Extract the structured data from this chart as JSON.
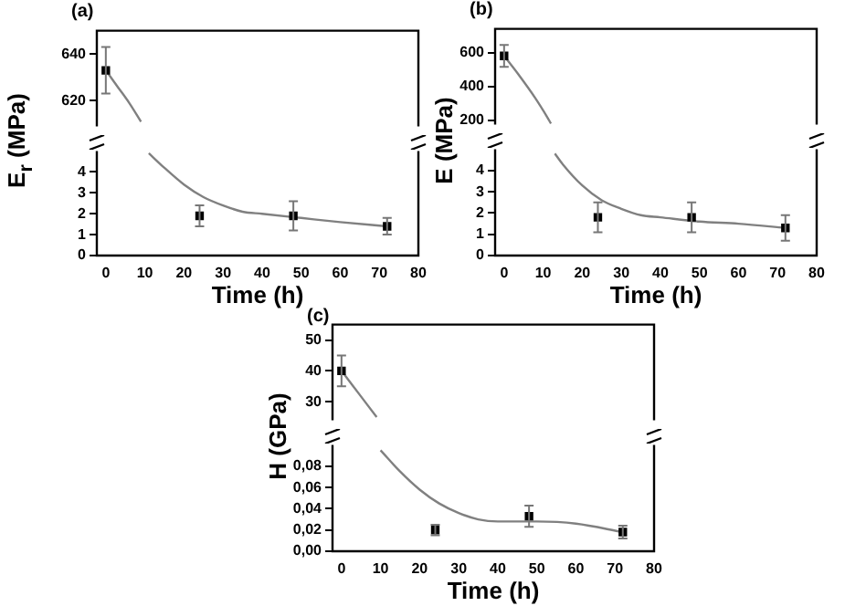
{
  "chart_data": [
    {
      "type": "scatter",
      "title": "(a)",
      "xlim": [
        -2.3,
        80
      ],
      "ylim": [
        609,
        650
      ],
      "yticks": [
        620,
        640
      ],
      "tick_labels": "y",
      "marker": "square",
      "series": [
        {
          "type": "scatter",
          "color": "#000000",
          "x": [
            0
          ],
          "values": [
            633
          ],
          "errors": [
            10
          ]
        },
        {
          "type": "line",
          "color": "#808080",
          "marker": "none",
          "x": [
            0,
            3,
            6,
            9
          ],
          "values": [
            633,
            626,
            619,
            611
          ]
        }
      ]
    },
    {
      "type": "scatter",
      "xlabel": "Time (h)",
      "ylabel": "E$_{r}$ (MPa)",
      "xlim": [
        -2.3,
        80
      ],
      "xticks": [
        0,
        10,
        20,
        30,
        40,
        50,
        60,
        70,
        80
      ],
      "ylim": [
        0,
        5
      ],
      "yticks": [
        0,
        1,
        2,
        3,
        4
      ],
      "marker": "square",
      "series": [
        {
          "type": "scatter",
          "color": "#000000",
          "x": [
            24,
            48,
            72
          ],
          "values": [
            1.9,
            1.9,
            1.4
          ],
          "errors": [
            0.5,
            0.7,
            0.4
          ]
        },
        {
          "type": "line",
          "color": "#808080",
          "marker": "none",
          "x": [
            11,
            15,
            20,
            25,
            30,
            35,
            40,
            50,
            60,
            72
          ],
          "values": [
            4.9,
            4.2,
            3.4,
            2.8,
            2.4,
            2.1,
            2.0,
            1.8,
            1.6,
            1.4
          ]
        }
      ]
    },
    {
      "type": "scatter",
      "title": "(b)",
      "xlim": [
        -2.3,
        80
      ],
      "ylim": [
        175,
        740
      ],
      "yticks": [
        200,
        400,
        600
      ],
      "tick_labels": "y",
      "marker": "square",
      "series": [
        {
          "type": "scatter",
          "color": "#000000",
          "x": [
            0
          ],
          "values": [
            580
          ],
          "errors": [
            65
          ]
        },
        {
          "type": "line",
          "color": "#808080",
          "marker": "none",
          "x": [
            0,
            4,
            8,
            11,
            12
          ],
          "values": [
            580,
            460,
            330,
            220,
            180
          ]
        }
      ]
    },
    {
      "type": "scatter",
      "xlabel": "Time (h)",
      "ylabel": "E (MPa)",
      "xlim": [
        -2.3,
        80
      ],
      "xticks": [
        0,
        10,
        20,
        30,
        40,
        50,
        60,
        70,
        80
      ],
      "ylim": [
        0,
        5
      ],
      "yticks": [
        0,
        1,
        2,
        3,
        4
      ],
      "marker": "square",
      "series": [
        {
          "type": "scatter",
          "color": "#000000",
          "x": [
            24,
            48,
            72
          ],
          "values": [
            1.8,
            1.8,
            1.3
          ],
          "errors": [
            0.7,
            0.7,
            0.6
          ]
        },
        {
          "type": "line",
          "color": "#808080",
          "marker": "none",
          "x": [
            13,
            15,
            20,
            25,
            30,
            35,
            40,
            50,
            60,
            72
          ],
          "values": [
            4.8,
            4.3,
            3.3,
            2.6,
            2.2,
            1.9,
            1.8,
            1.6,
            1.5,
            1.3
          ]
        }
      ]
    },
    {
      "type": "scatter",
      "title": "(c)",
      "xlim": [
        -2.3,
        80
      ],
      "ylim": [
        24,
        55
      ],
      "yticks": [
        30,
        40,
        50
      ],
      "tick_labels": "y",
      "marker": "square",
      "series": [
        {
          "type": "scatter",
          "color": "#000000",
          "x": [
            0
          ],
          "values": [
            40
          ],
          "errors": [
            5
          ]
        },
        {
          "type": "line",
          "color": "#808080",
          "marker": "none",
          "x": [
            0,
            3,
            6,
            9
          ],
          "values": [
            40,
            35,
            30,
            25
          ]
        }
      ]
    },
    {
      "type": "scatter",
      "xlabel": "Time (h)",
      "ylabel": "H (GPa)",
      "xlim": [
        -2.3,
        80
      ],
      "xticks": [
        0,
        10,
        20,
        30,
        40,
        50,
        60,
        70,
        80
      ],
      "ylim": [
        0,
        0.1
      ],
      "yticks": [
        {
          "value": 0,
          "label": "0,00"
        },
        {
          "value": 0.02,
          "label": "0,02"
        },
        {
          "value": 0.04,
          "label": "0,04"
        },
        {
          "value": 0.06,
          "label": "0,06"
        },
        {
          "value": 0.08,
          "label": "0,08"
        }
      ],
      "marker": "square",
      "series": [
        {
          "type": "scatter",
          "color": "#000000",
          "x": [
            24,
            48,
            72
          ],
          "values": [
            0.02,
            0.033,
            0.018
          ],
          "errors": [
            0.005,
            0.01,
            0.006
          ]
        },
        {
          "type": "line",
          "color": "#808080",
          "marker": "none",
          "x": [
            10,
            15,
            20,
            25,
            30,
            35,
            40,
            50,
            60,
            72
          ],
          "values": [
            0.095,
            0.075,
            0.058,
            0.045,
            0.036,
            0.03,
            0.028,
            0.028,
            0.026,
            0.018
          ]
        }
      ]
    }
  ]
}
